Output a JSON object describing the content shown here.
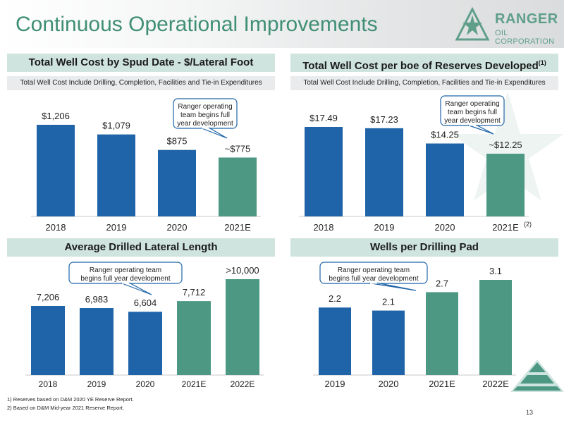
{
  "header": {
    "title": "Continuous Operational Improvements"
  },
  "logo": {
    "name": "RANGER",
    "subtitle": "OIL CORPORATION"
  },
  "colors": {
    "blue": "#1f64a8",
    "green": "#4c9883",
    "accent": "#3f8f74"
  },
  "panels": {
    "cost_lateral": {
      "title": "Total Well Cost by Spud Date - $/Lateral Foot",
      "subtitle": "Total Well Cost Include Drilling, Completion, Facilities and Tie-in Expenditures",
      "callout": [
        "Ranger operating",
        "team begins full",
        "year development"
      ]
    },
    "cost_boe": {
      "title": "Total Well Cost per boe of Reserves Developed",
      "title_sup": "(1)",
      "subtitle": "Total Well Cost Include Drilling, Completion, Facilities and Tie-in Expenditures",
      "callout": [
        "Ranger operating",
        "team begins full",
        "year development"
      ],
      "last_category_sup": "(2)"
    },
    "lateral_length": {
      "title": "Average Drilled Lateral Length",
      "callout": [
        "Ranger operating team",
        "begins full year development"
      ]
    },
    "wells_per_pad": {
      "title": "Wells per Drilling Pad",
      "callout": [
        "Ranger operating team",
        "begins full year development"
      ]
    }
  },
  "chart_data": [
    {
      "type": "bar",
      "title": "Total Well Cost by Spud Date - $/Lateral Foot",
      "categories": [
        "2018",
        "2019",
        "2020",
        "2021E"
      ],
      "values": [
        1206,
        1079,
        875,
        775
      ],
      "labels": [
        "$1,206",
        "$1,079",
        "$875",
        "~$775"
      ],
      "colors": [
        "#1f64a8",
        "#1f64a8",
        "#1f64a8",
        "#4c9883"
      ]
    },
    {
      "type": "bar",
      "title": "Total Well Cost per boe of Reserves Developed",
      "categories": [
        "2018",
        "2019",
        "2020",
        "2021E"
      ],
      "values": [
        17.49,
        17.23,
        14.25,
        12.25
      ],
      "labels": [
        "$17.49",
        "$17.23",
        "$14.25",
        "~$12.25"
      ],
      "colors": [
        "#1f64a8",
        "#1f64a8",
        "#1f64a8",
        "#4c9883"
      ]
    },
    {
      "type": "bar",
      "title": "Average Drilled Lateral Length",
      "categories": [
        "2018",
        "2019",
        "2020",
        "2021E",
        "2022E"
      ],
      "values": [
        7206,
        6983,
        6604,
        7712,
        10000
      ],
      "labels": [
        "7,206",
        "6,983",
        "6,604",
        "7,712",
        ">10,000"
      ],
      "colors": [
        "#1f64a8",
        "#1f64a8",
        "#1f64a8",
        "#4c9883",
        "#4c9883"
      ]
    },
    {
      "type": "bar",
      "title": "Wells per Drilling Pad",
      "categories": [
        "2019",
        "2020",
        "2021E",
        "2022E"
      ],
      "values": [
        2.2,
        2.1,
        2.7,
        3.1
      ],
      "labels": [
        "2.2",
        "2.1",
        "2.7",
        "3.1"
      ],
      "colors": [
        "#1f64a8",
        "#1f64a8",
        "#4c9883",
        "#4c9883"
      ]
    }
  ],
  "footnotes": [
    "1) Reserves based on D&M 2020 YE Reserve Report.",
    "2) Based on D&M Mid-year 2021 Reserve Report."
  ],
  "page_number": "13"
}
